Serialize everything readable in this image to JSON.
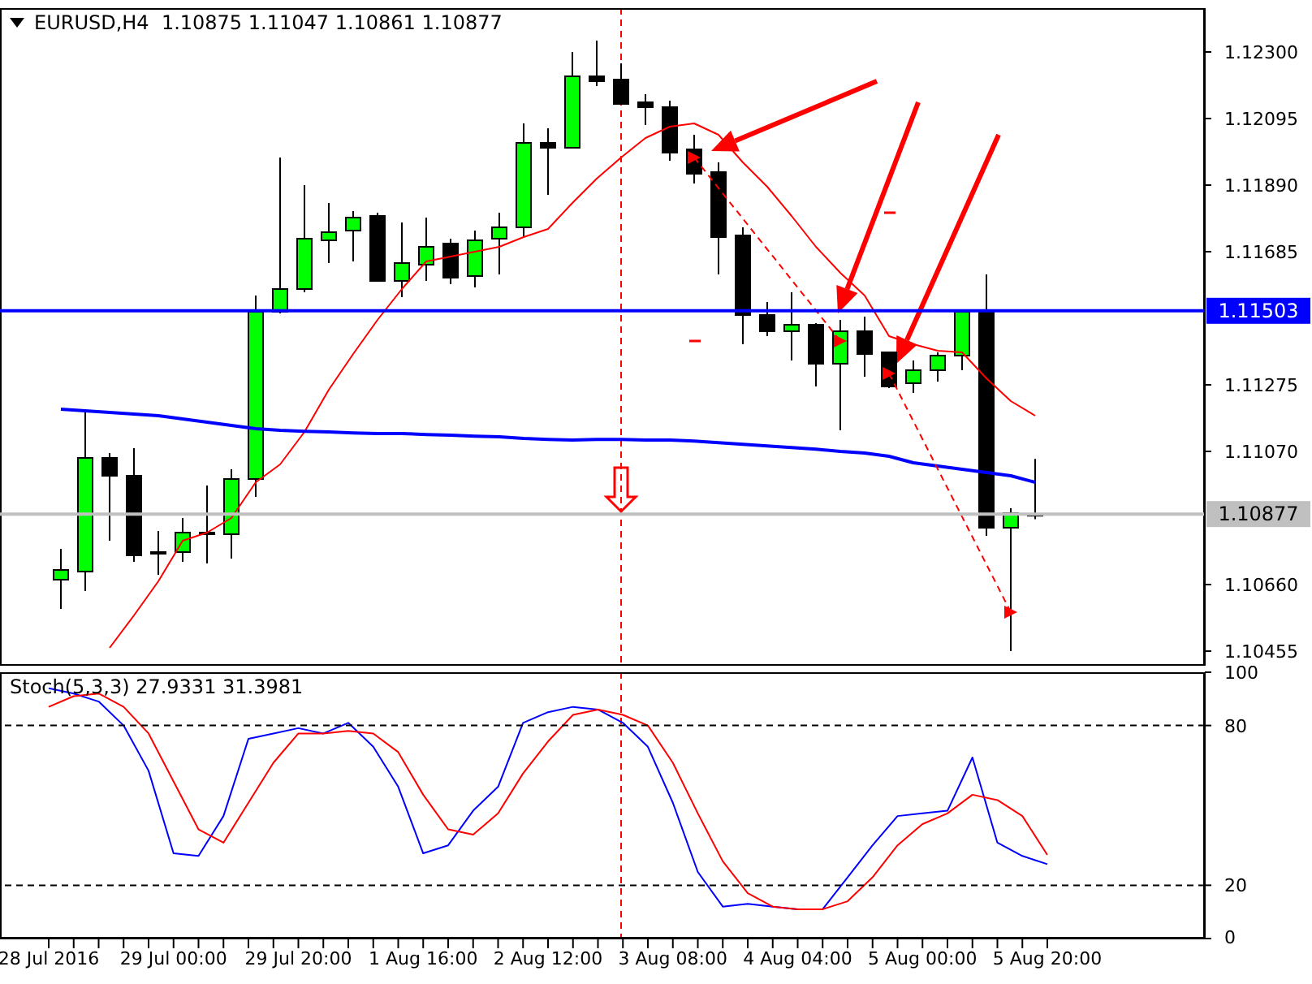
{
  "chart_data": [
    {
      "type": "candlestick",
      "title": "EURUSD,H4  1.10875 1.11047 1.10861 1.10877",
      "tick_labels": "y",
      "categories": [
        null,
        null,
        null,
        null,
        null,
        null,
        null,
        null,
        null,
        null,
        null,
        null,
        null,
        null,
        null,
        null,
        null,
        null,
        null,
        null,
        null,
        null,
        null,
        null,
        null,
        null,
        null,
        null,
        null,
        null,
        null,
        null,
        null,
        null,
        null,
        null,
        null,
        null,
        null,
        null,
        null
      ],
      "ohlc": [
        [
          1.10675,
          1.1077,
          1.10585,
          1.10705
        ],
        [
          1.107,
          1.11195,
          1.1064,
          1.1105
        ],
        [
          1.1105,
          1.11065,
          1.10795,
          1.10995
        ],
        [
          1.10995,
          1.1108,
          1.1073,
          1.1075
        ],
        [
          1.1076,
          1.10825,
          1.1069,
          1.1076
        ],
        [
          1.1076,
          1.10865,
          1.1073,
          1.1082
        ],
        [
          1.1082,
          1.10965,
          1.10725,
          1.10815
        ],
        [
          1.10815,
          1.11015,
          1.1074,
          1.10985
        ],
        [
          1.10985,
          1.1155,
          1.1093,
          1.115
        ],
        [
          1.115,
          1.11975,
          1.11495,
          1.1157
        ],
        [
          1.1157,
          1.1189,
          1.1156,
          1.11725
        ],
        [
          1.1172,
          1.11835,
          1.1165,
          1.11745
        ],
        [
          1.1175,
          1.1181,
          1.11655,
          1.1179
        ],
        [
          1.11795,
          1.11805,
          1.11595,
          1.11595
        ],
        [
          1.11595,
          1.11775,
          1.11545,
          1.1165
        ],
        [
          1.11645,
          1.1179,
          1.11595,
          1.117
        ],
        [
          1.1171,
          1.11725,
          1.11585,
          1.11605
        ],
        [
          1.1161,
          1.1175,
          1.11575,
          1.1172
        ],
        [
          1.11725,
          1.11805,
          1.11615,
          1.1176
        ],
        [
          1.1176,
          1.1208,
          1.1173,
          1.1202
        ],
        [
          1.1202,
          1.12065,
          1.1186,
          1.12005
        ],
        [
          1.12005,
          1.123,
          1.12005,
          1.12225
        ],
        [
          1.12225,
          1.12335,
          1.12195,
          1.1221
        ],
        [
          1.12215,
          1.12265,
          1.1214,
          1.1214
        ],
        [
          1.12145,
          1.1217,
          1.12075,
          1.1213
        ],
        [
          1.1213,
          1.1215,
          1.11965,
          1.1199
        ],
        [
          1.12,
          1.12045,
          1.11895,
          1.11925
        ],
        [
          1.1193,
          1.1196,
          1.11615,
          1.1173
        ],
        [
          1.11735,
          1.1176,
          1.114,
          1.1149
        ],
        [
          1.1149,
          1.1153,
          1.11425,
          1.1144
        ],
        [
          1.1144,
          1.1156,
          1.1135,
          1.1146
        ],
        [
          1.1146,
          1.11465,
          1.1127,
          1.1134
        ],
        [
          1.1134,
          1.11475,
          1.11135,
          1.1144
        ],
        [
          1.1144,
          1.11485,
          1.113,
          1.1137
        ],
        [
          1.11375,
          1.11375,
          1.11265,
          1.1127
        ],
        [
          1.1128,
          1.1135,
          1.1125,
          1.1132
        ],
        [
          1.1132,
          1.11375,
          1.11285,
          1.11365
        ],
        [
          1.11365,
          1.11505,
          1.1132,
          1.115
        ],
        [
          1.115,
          1.11615,
          1.1081,
          1.10835
        ],
        [
          1.10835,
          1.10895,
          1.10455,
          1.1088
        ],
        [
          1.10875,
          1.11047,
          1.10861,
          1.10877
        ]
      ],
      "colors": [
        "#00ff00",
        "#00ff00",
        "#000000",
        "#000000",
        "#000000",
        "#00ff00",
        "#000000",
        "#00ff00",
        "#00ff00",
        "#00ff00",
        "#00ff00",
        "#00ff00",
        "#00ff00",
        "#000000",
        "#00ff00",
        "#00ff00",
        "#000000",
        "#00ff00",
        "#00ff00",
        "#00ff00",
        "#000000",
        "#00ff00",
        "#000000",
        "#000000",
        "#000000",
        "#000000",
        "#000000",
        "#000000",
        "#000000",
        "#000000",
        "#00ff00",
        "#000000",
        "#00ff00",
        "#000000",
        "#000000",
        "#00ff00",
        "#00ff00",
        "#00ff00",
        "#000000",
        "#00ff00",
        "#000000"
      ],
      "series": [
        {
          "type": "line",
          "color": "#ff0000",
          "values": [
            null,
            null,
            1.10465,
            1.10565,
            1.1067,
            1.10795,
            1.1082,
            1.10865,
            1.10975,
            1.1103,
            1.1113,
            1.1126,
            1.1137,
            1.11475,
            1.1157,
            1.11655,
            1.1167,
            1.11685,
            1.117,
            1.1173,
            1.11755,
            1.11835,
            1.1191,
            1.11975,
            1.12035,
            1.1207,
            1.1208,
            1.12045,
            1.1196,
            1.11885,
            1.11795,
            1.117,
            1.1162,
            1.1155,
            1.11425,
            1.114,
            1.1138,
            1.11375,
            1.11295,
            1.11225,
            1.1118
          ]
        },
        {
          "type": "line",
          "color": "#0000ff",
          "values": [
            1.112,
            1.11195,
            1.1119,
            1.11185,
            1.1118,
            1.1117,
            1.1116,
            1.1115,
            1.1114,
            1.11135,
            1.11132,
            1.1113,
            1.11127,
            1.11125,
            1.11125,
            1.11122,
            1.1112,
            1.11117,
            1.11115,
            1.1111,
            1.11107,
            1.11105,
            1.11107,
            1.11107,
            1.11105,
            1.11105,
            1.11102,
            1.11097,
            1.11092,
            1.11087,
            1.11082,
            1.11077,
            1.1107,
            1.11065,
            1.11055,
            1.11035,
            1.11025,
            1.11015,
            1.11005,
            1.10995,
            1.10975
          ]
        },
        {
          "type": "line",
          "color": "#ff0000",
          "line_style": "dashed",
          "marker": "triangle",
          "values": [
            null,
            null,
            null,
            null,
            null,
            null,
            null,
            null,
            null,
            null,
            null,
            null,
            null,
            null,
            null,
            null,
            null,
            null,
            null,
            null,
            null,
            null,
            null,
            null,
            null,
            null,
            1.11975,
            null,
            null,
            null,
            null,
            null,
            1.1141,
            null,
            null,
            null,
            null,
            null,
            null,
            null,
            null
          ]
        },
        {
          "type": "line",
          "color": "#ff0000",
          "line_style": "dashed",
          "marker": "triangle",
          "values": [
            null,
            null,
            null,
            null,
            null,
            null,
            null,
            null,
            null,
            null,
            null,
            null,
            null,
            null,
            null,
            null,
            null,
            null,
            null,
            null,
            null,
            null,
            null,
            null,
            null,
            null,
            null,
            null,
            null,
            null,
            null,
            null,
            null,
            null,
            1.1131,
            null,
            null,
            null,
            null,
            1.10575,
            null
          ]
        }
      ],
      "ylim": [
        1.1041,
        1.12435
      ],
      "yticks": [
        {
          "value": 1.123,
          "label": "1.12300"
        },
        {
          "value": 1.12095,
          "label": "1.12095"
        },
        {
          "value": 1.1189,
          "label": "1.11890"
        },
        {
          "value": 1.11685,
          "label": "1.11685"
        },
        {
          "value": 1.11275,
          "label": "1.11275"
        },
        {
          "value": 1.1107,
          "label": "1.11070"
        },
        {
          "value": 1.1066,
          "label": "1.10660"
        },
        {
          "value": 1.10455,
          "label": "1.10455"
        }
      ],
      "ref_lines": [
        {
          "axis": "y",
          "value": 1.11503,
          "label": "1.11503",
          "color": "#0000ff"
        },
        {
          "axis": "y",
          "value": 1.10877,
          "label": "1.10877",
          "color": "#c0c0c0"
        }
      ]
    },
    {
      "type": "line",
      "title": "Stoch(5,3,3) 27.9331 31.3981",
      "categories": [
        "28 Jul 2016",
        null,
        null,
        null,
        null,
        "29 Jul 00:00",
        null,
        null,
        null,
        null,
        "29 Jul 20:00",
        null,
        null,
        null,
        null,
        "1 Aug 16:00",
        null,
        null,
        null,
        null,
        "2 Aug 12:00",
        null,
        null,
        null,
        null,
        "3 Aug 08:00",
        null,
        null,
        null,
        null,
        "4 Aug 04:00",
        null,
        null,
        null,
        null,
        "5 Aug 00:00",
        null,
        null,
        null,
        null,
        "5 Aug 20:00"
      ],
      "series": [
        {
          "color": "#0000ff",
          "values": [
            94,
            92,
            89,
            80,
            63,
            32,
            31,
            46,
            75,
            77,
            79,
            77,
            81,
            72,
            57,
            32,
            35,
            48,
            57,
            81,
            85,
            87,
            86,
            81,
            72,
            51,
            25,
            12,
            13,
            12,
            11,
            11,
            23,
            35,
            46,
            47,
            48,
            68,
            36,
            31,
            27.9331
          ]
        },
        {
          "color": "#ff0000",
          "values": [
            87,
            91,
            92,
            87,
            77,
            59,
            41,
            36,
            51,
            66,
            77,
            77,
            78,
            77,
            70,
            54,
            41,
            39,
            47,
            62,
            74,
            84,
            86,
            84,
            80,
            66,
            47,
            29,
            17,
            12,
            11,
            11,
            14,
            23,
            35,
            43,
            47,
            54,
            52,
            46,
            31.3981
          ]
        }
      ],
      "ylim": [
        0,
        100
      ],
      "yticks": [
        0,
        20,
        80,
        100
      ],
      "ref_lines": [
        {
          "axis": "y",
          "value": 80,
          "color": "#000000",
          "line_style": "dashed"
        },
        {
          "axis": "y",
          "value": 20,
          "color": "#000000",
          "line_style": "dashed"
        }
      ]
    }
  ]
}
